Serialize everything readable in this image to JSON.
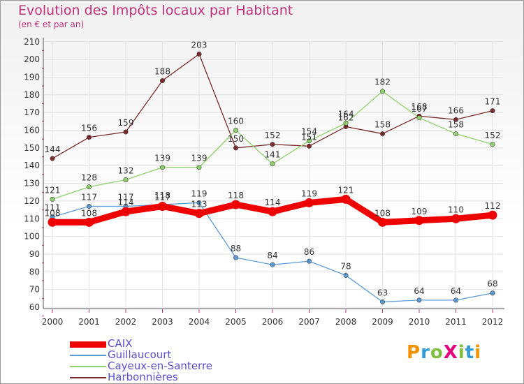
{
  "header": {
    "title": "Evolution des Impôts locaux par Habitant",
    "subtitle": "(en € et par an)"
  },
  "logo": {
    "text": "ProXiti",
    "colors": [
      "#f39200",
      "#2f9ad6",
      "#7fbf3f",
      "#e5007e",
      "#7fbf3f",
      "#2f9ad6",
      "#f39200"
    ]
  },
  "colors": {
    "title": "#c0307a",
    "axis": "#666666",
    "grid": "#e2e2e2"
  },
  "chart_data": {
    "type": "line",
    "title": "Evolution des Impôts locaux par Habitant",
    "subtitle": "(en € et par an)",
    "x": [
      "2000",
      "2001",
      "2002",
      "2003",
      "2004",
      "2005",
      "2006",
      "2007",
      "2008",
      "2009",
      "2010",
      "2011",
      "2012"
    ],
    "ylim": [
      60,
      210
    ],
    "yticks": [
      "60",
      "70",
      "80",
      "90",
      "100",
      "110",
      "120",
      "130",
      "140",
      "150",
      "160",
      "170",
      "180",
      "190",
      "200",
      "210"
    ],
    "grid": true,
    "legend_position": "bottom-left",
    "series": [
      {
        "name": "CAIX",
        "color": "#ee0000",
        "values": [
          108,
          108,
          114,
          117,
          113,
          118,
          114,
          119,
          121,
          108,
          109,
          110,
          112
        ],
        "labels": [
          "108",
          "108",
          "114",
          "117",
          "113",
          "118",
          "114",
          "119",
          "121",
          "108",
          "109",
          "110",
          "112"
        ]
      },
      {
        "name": "Guillaucourt",
        "color": "#5b9bd5",
        "values": [
          111,
          117,
          117,
          118,
          119,
          88,
          84,
          86,
          78,
          63,
          64,
          64,
          68
        ],
        "labels": [
          "111",
          "117",
          "117",
          "118",
          "119",
          "88",
          "84",
          "86",
          "78",
          "63",
          "64",
          "64",
          "68"
        ]
      },
      {
        "name": "Cayeux-en-Santerre",
        "color": "#8fd16a",
        "values": [
          121,
          128,
          132,
          139,
          139,
          160,
          141,
          154,
          164,
          182,
          167,
          158,
          152
        ],
        "labels": [
          "121",
          "128",
          "132",
          "139",
          "139",
          "160",
          "141",
          "154",
          "164",
          "182",
          "167",
          "158",
          "152"
        ]
      },
      {
        "name": "Harbonnières",
        "color": "#7a2a2a",
        "values": [
          144,
          156,
          159,
          188,
          203,
          150,
          152,
          151,
          162,
          158,
          168,
          166,
          171
        ],
        "labels": [
          "144",
          "156",
          "159",
          "188",
          "203",
          "150",
          "152",
          "151",
          "162",
          "158",
          "168",
          "166",
          "171"
        ]
      }
    ]
  }
}
